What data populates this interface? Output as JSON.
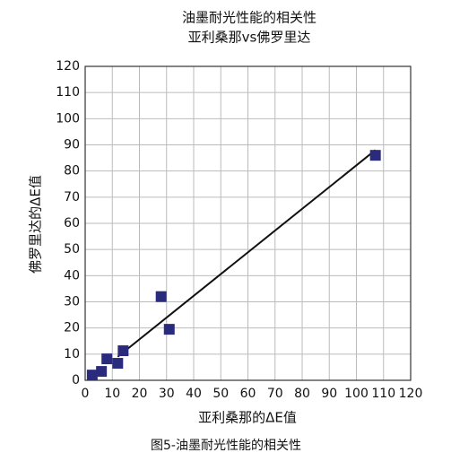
{
  "chart_data": {
    "type": "scatter",
    "title": [
      "油墨耐光性能的相关性",
      "亚利桑那vs佛罗里达"
    ],
    "x_label": "亚利桑那的ΔE值",
    "y_label": "佛罗里达的ΔE值",
    "caption": "图5-油墨耐光性能的相关性",
    "series": [
      {
        "color": "#2b2b7e",
        "x": [
          2.6,
          6,
          8,
          12,
          14,
          28,
          31,
          107
        ],
        "values": [
          2,
          3.4,
          8.2,
          6.5,
          11.3,
          32,
          19.5,
          86
        ]
      }
    ],
    "trendline": {
      "x": [
        12,
        107
      ],
      "y": [
        9,
        88
      ],
      "color": "#111111"
    },
    "xlim": [
      0,
      120
    ],
    "ylim": [
      0,
      120
    ],
    "xticks": [
      0,
      10,
      20,
      30,
      40,
      50,
      60,
      70,
      80,
      90,
      100,
      110,
      120
    ],
    "yticks": [
      0,
      10,
      20,
      30,
      40,
      50,
      60,
      70,
      80,
      90,
      100,
      110,
      120
    ],
    "grid": true
  }
}
